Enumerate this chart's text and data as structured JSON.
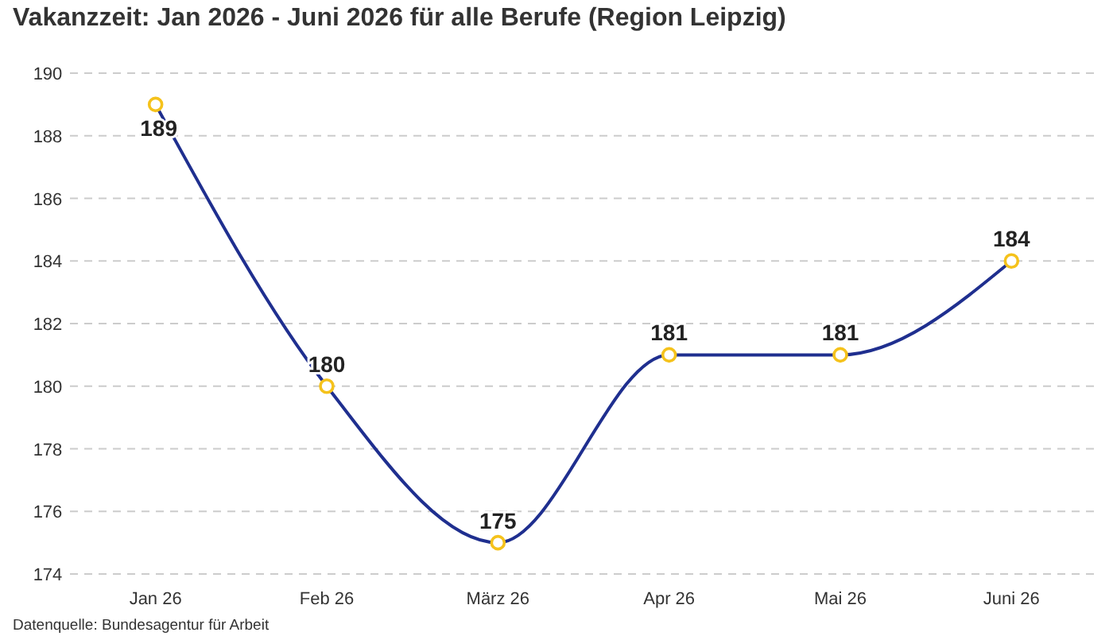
{
  "chart_data": {
    "type": "line",
    "title": "Vakanzzeit: Jan 2026 - Juni 2026 für alle Berufe (Region Leipzig)",
    "categories": [
      "Jan 26",
      "Feb 26",
      "März 26",
      "Apr 26",
      "Mai 26",
      "Juni 26"
    ],
    "series": [
      {
        "color": "#1f2f8f",
        "values": [
          189,
          180,
          175,
          181,
          181,
          184
        ]
      }
    ],
    "marker": "circle",
    "ylim": [
      174,
      190
    ],
    "yticks": [
      174,
      176,
      178,
      180,
      182,
      184,
      186,
      188,
      190
    ],
    "grid": "y",
    "data_labels": true,
    "annotations": [
      "Datenquelle: Bundesagentur für Arbeit"
    ]
  }
}
